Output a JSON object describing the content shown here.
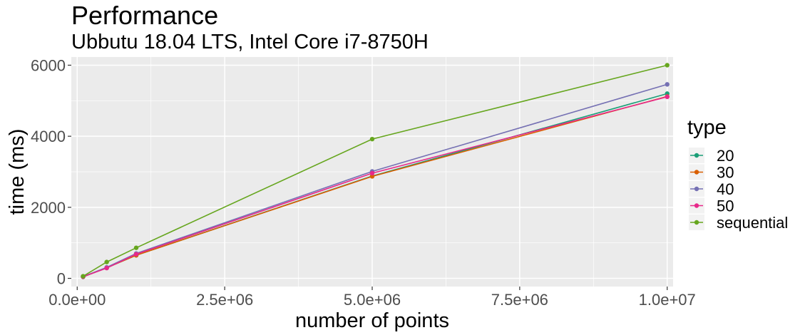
{
  "chart_data": {
    "type": "line",
    "title": "Performance",
    "subtitle": "Ubbutu 18.04 LTS, Intel Core i7-8750H",
    "xlabel": "number of points",
    "ylabel": "time (ms)",
    "xlim": [
      -100000,
      10100000
    ],
    "ylim": [
      -230,
      6230
    ],
    "xticks": [
      0,
      2500000,
      5000000,
      7500000,
      10000000
    ],
    "xtick_labels": [
      "0.0e+00",
      "2.5e+06",
      "5.0e+06",
      "7.5e+06",
      "1.0e+07"
    ],
    "yticks": [
      0,
      2000,
      4000,
      6000
    ],
    "ytick_labels": [
      "0",
      "2000",
      "4000",
      "6000"
    ],
    "grid": true,
    "legend": {
      "title": "type",
      "position": "right"
    },
    "x": [
      100000,
      500000,
      1000000,
      5000000,
      10000000
    ],
    "series": [
      {
        "name": "20",
        "color": "#1b9e77",
        "values": [
          40,
          300,
          650,
          2880,
          5200
        ]
      },
      {
        "name": "30",
        "color": "#d95f02",
        "values": [
          45,
          300,
          650,
          2870,
          5120
        ]
      },
      {
        "name": "40",
        "color": "#7570b3",
        "values": [
          50,
          310,
          700,
          3010,
          5460
        ]
      },
      {
        "name": "50",
        "color": "#e7298a",
        "values": [
          45,
          290,
          680,
          2960,
          5110
        ]
      },
      {
        "name": "sequential",
        "color": "#66a61e",
        "values": [
          60,
          460,
          860,
          3920,
          6000
        ]
      }
    ]
  }
}
